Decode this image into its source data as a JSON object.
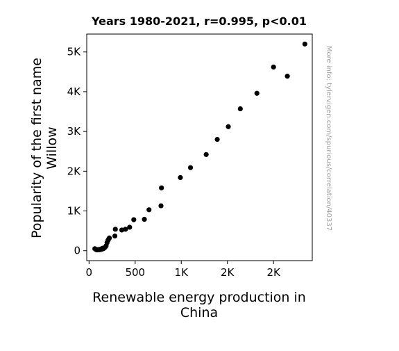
{
  "chart_data": {
    "type": "scatter",
    "title": "Years 1980-2021, r=0.995, p<0.01",
    "xlabel": [
      "Renewable energy production in",
      "China"
    ],
    "ylabel": [
      "Popularity of the first name",
      "Willow"
    ],
    "watermark": "More info: tylervigen.com/spurious/correlation/40337",
    "xlim": [
      -25,
      2420
    ],
    "ylim": [
      -250,
      5450
    ],
    "x_ticks": [
      {
        "value": 0,
        "label": "0"
      },
      {
        "value": 500,
        "label": "500"
      },
      {
        "value": 1000,
        "label": "1K"
      },
      {
        "value": 1500,
        "label": "2K"
      },
      {
        "value": 2000,
        "label": "2K"
      }
    ],
    "y_ticks": [
      {
        "value": 0,
        "label": "0"
      },
      {
        "value": 1000,
        "label": "1K"
      },
      {
        "value": 2000,
        "label": "2K"
      },
      {
        "value": 3000,
        "label": "3K"
      },
      {
        "value": 4000,
        "label": "4K"
      },
      {
        "value": 5000,
        "label": "5K"
      }
    ],
    "marker_color": "#000000",
    "series": [
      {
        "points": [
          [
            63,
            50
          ],
          [
            75,
            30
          ],
          [
            85,
            20
          ],
          [
            95,
            25
          ],
          [
            105,
            30
          ],
          [
            115,
            25
          ],
          [
            125,
            40
          ],
          [
            135,
            35
          ],
          [
            145,
            60
          ],
          [
            155,
            50
          ],
          [
            165,
            70
          ],
          [
            175,
            90
          ],
          [
            185,
            120
          ],
          [
            195,
            200
          ],
          [
            205,
            260
          ],
          [
            215,
            300
          ],
          [
            220,
            320
          ],
          [
            280,
            370
          ],
          [
            285,
            540
          ],
          [
            355,
            520
          ],
          [
            395,
            540
          ],
          [
            440,
            590
          ],
          [
            485,
            780
          ],
          [
            600,
            790
          ],
          [
            650,
            1030
          ],
          [
            780,
            1130
          ],
          [
            785,
            1580
          ],
          [
            990,
            1840
          ],
          [
            1100,
            2090
          ],
          [
            1270,
            2420
          ],
          [
            1390,
            2800
          ],
          [
            1510,
            3120
          ],
          [
            1640,
            3570
          ],
          [
            1820,
            3960
          ],
          [
            2000,
            4620
          ],
          [
            2150,
            4390
          ],
          [
            2340,
            5200
          ]
        ]
      }
    ]
  }
}
